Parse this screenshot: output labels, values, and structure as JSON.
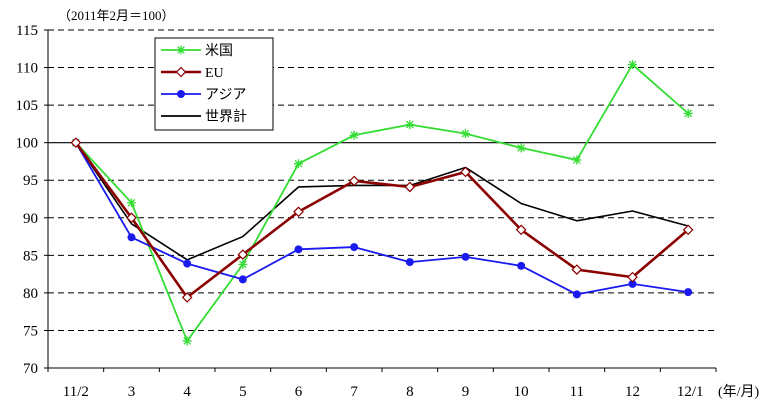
{
  "chart_data": {
    "type": "line",
    "title": "",
    "unit_note": "（2011年2月＝100）",
    "x_unit_label": "(年/月)",
    "categories": [
      "11/2",
      "3",
      "4",
      "5",
      "6",
      "7",
      "8",
      "9",
      "10",
      "11",
      "12",
      "12/1"
    ],
    "ylim": [
      70,
      115
    ],
    "yticks": [
      70,
      75,
      80,
      85,
      90,
      95,
      100,
      105,
      110,
      115
    ],
    "grid": "dashed horizontal lines, solid line at 100",
    "legend_position": "top-left",
    "series": [
      {
        "name": "米国",
        "color": "#33dd33",
        "marker": "asterisk",
        "values": [
          100,
          92.0,
          73.6,
          83.8,
          97.2,
          101.0,
          102.4,
          101.2,
          99.3,
          97.7,
          110.4,
          103.9
        ]
      },
      {
        "name": "EU",
        "color": "#8b0000",
        "marker": "open-diamond",
        "values": [
          100,
          90.0,
          79.4,
          85.1,
          90.8,
          94.9,
          94.1,
          96.1,
          88.4,
          83.1,
          82.1,
          88.4
        ]
      },
      {
        "name": "アジア",
        "color": "#1a1aee",
        "marker": "filled-circle",
        "values": [
          100,
          87.4,
          83.9,
          81.8,
          85.8,
          86.1,
          84.1,
          84.8,
          83.6,
          79.8,
          81.2,
          80.1
        ]
      },
      {
        "name": "世界計",
        "color": "#000000",
        "marker": "none",
        "values": [
          100,
          89.2,
          84.4,
          87.5,
          94.1,
          94.3,
          94.3,
          96.7,
          91.9,
          89.6,
          90.9,
          88.9
        ]
      }
    ]
  }
}
